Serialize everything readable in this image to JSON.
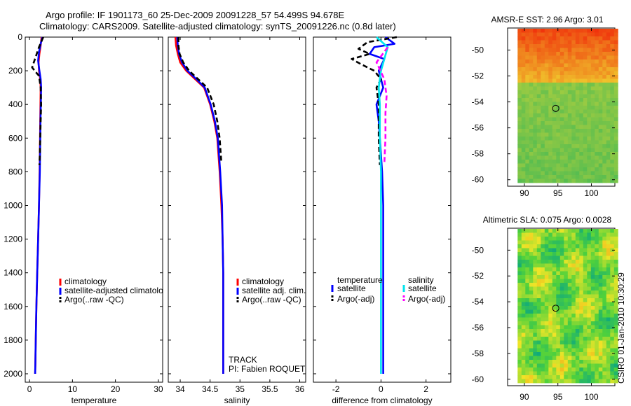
{
  "header": {
    "title_line1": "Argo profile: IF 1901173_60 25-Dec-2009 20091228_57 54.499S 94.678E",
    "title_line2": "Climatology: CARS2009. Satellite-adjusted climatology: synTS_20091226.nc (0.8d later)"
  },
  "footer": {
    "track_label": "TRACK",
    "pi_label": "PI: Fabien ROQUET",
    "credit": "CSIRO 01-Jan-2010 10:30:29"
  },
  "colors": {
    "climatology": "#ff0000",
    "satellite": "#0000ff",
    "argo": "#000000",
    "satellite_salinity": "#00e5ee",
    "argo_salinity": "#ff00ff"
  },
  "chart_data": [
    {
      "type": "line",
      "name": "temperature-profile",
      "xlabel": "temperature",
      "xlim": [
        -1,
        31
      ],
      "ylim": [
        0,
        2050
      ],
      "y_reversed": true,
      "x_ticks": [
        "0",
        "10",
        "20",
        "30"
      ],
      "y_ticks": [
        "0",
        "200",
        "400",
        "600",
        "800",
        "1000",
        "1200",
        "1400",
        "1600",
        "1800",
        "2000"
      ],
      "legend": [
        "climatology",
        "satellite-adjusted climatolo",
        "Argo(..raw -QC)"
      ],
      "series": [
        {
          "name": "climatology",
          "color": "#ff0000",
          "style": "solid",
          "x": [
            2.8,
            2.6,
            2.3,
            2.1,
            2.2,
            2.5,
            2.6,
            2.5,
            2.35,
            2.2,
            2.0,
            1.8,
            1.6,
            1.45,
            1.35,
            1.3
          ],
          "y": [
            0,
            50,
            100,
            150,
            200,
            250,
            300,
            500,
            800,
            1000,
            1200,
            1400,
            1600,
            1800,
            1950,
            2000
          ]
        },
        {
          "name": "satellite",
          "color": "#0000ff",
          "style": "solid",
          "x": [
            3.0,
            2.6,
            2.2,
            2.0,
            2.3,
            2.6,
            2.7,
            2.55,
            2.4,
            2.2,
            2.0,
            1.8,
            1.6,
            1.45,
            1.35,
            1.3
          ],
          "y": [
            0,
            40,
            90,
            140,
            200,
            250,
            300,
            500,
            800,
            1000,
            1200,
            1400,
            1600,
            1800,
            1950,
            2000
          ]
        },
        {
          "name": "argo",
          "color": "#000000",
          "style": "dashed",
          "x": [
            3.2,
            2.2,
            1.4,
            0.6,
            1.2,
            2.2,
            2.6,
            2.7,
            2.6,
            2.5,
            2.4,
            2.3
          ],
          "y": [
            0,
            60,
            120,
            180,
            200,
            230,
            300,
            400,
            500,
            600,
            700,
            760
          ]
        }
      ]
    },
    {
      "type": "line",
      "name": "salinity-profile",
      "xlabel": "salinity",
      "xlim": [
        33.8,
        36.1
      ],
      "ylim": [
        0,
        2050
      ],
      "y_reversed": true,
      "x_ticks": [
        "34",
        "34.5",
        "35",
        "35.5",
        "36"
      ],
      "legend": [
        "climatology",
        "satellite adj. clim.",
        "Argo(..raw -QC)"
      ],
      "series": [
        {
          "name": "climatology",
          "color": "#ff0000",
          "style": "solid",
          "x": [
            33.92,
            33.93,
            33.96,
            34.0,
            34.1,
            34.25,
            34.4,
            34.5,
            34.57,
            34.62,
            34.66,
            34.69,
            34.71,
            34.72,
            34.72,
            34.72,
            34.72
          ],
          "y": [
            0,
            50,
            100,
            150,
            200,
            250,
            300,
            400,
            500,
            600,
            800,
            1000,
            1200,
            1400,
            1600,
            1800,
            2000
          ]
        },
        {
          "name": "satellite",
          "color": "#0000ff",
          "style": "solid",
          "x": [
            33.95,
            33.96,
            33.98,
            34.03,
            34.12,
            34.27,
            34.41,
            34.51,
            34.58,
            34.63,
            34.67,
            34.7,
            34.71,
            34.72,
            34.72,
            34.72,
            34.72
          ],
          "y": [
            0,
            50,
            100,
            150,
            200,
            250,
            300,
            400,
            500,
            600,
            800,
            1000,
            1200,
            1400,
            1600,
            1800,
            2000
          ]
        },
        {
          "name": "argo",
          "color": "#000000",
          "style": "dashed",
          "x": [
            33.97,
            33.97,
            33.99,
            34.05,
            34.15,
            34.3,
            34.45,
            34.56,
            34.62,
            34.66,
            34.69
          ],
          "y": [
            0,
            50,
            100,
            150,
            200,
            250,
            300,
            400,
            500,
            600,
            750
          ]
        }
      ]
    },
    {
      "type": "line",
      "name": "difference-profile",
      "xlabel": "difference from climatology",
      "xlim": [
        -3,
        3.1
      ],
      "ylim": [
        0,
        2050
      ],
      "y_reversed": true,
      "x_ticks": [
        "-2",
        "0",
        "2"
      ],
      "legend": [
        "temperature",
        "satellite",
        "Argo(-adj)",
        "salinity",
        "satellite",
        "Argo(-adj)"
      ],
      "series": [
        {
          "name": "temperature satellite",
          "color": "#0000ff",
          "style": "solid",
          "x": [
            0.2,
            0.6,
            -0.3,
            -0.5,
            0.15,
            -0.1,
            0.1,
            -0.2,
            -0.1,
            0.05,
            0.1,
            0.1,
            0.1,
            0.1,
            0.1,
            0.1
          ],
          "y": [
            0,
            40,
            60,
            100,
            130,
            200,
            300,
            400,
            500,
            800,
            1000,
            1200,
            1400,
            1600,
            1800,
            2000
          ]
        },
        {
          "name": "temperature argo",
          "color": "#000000",
          "style": "dashed",
          "x": [
            0.7,
            -0.6,
            -1.0,
            -0.5,
            -1.3,
            -0.9,
            -0.3,
            0.0,
            -0.2,
            -0.1,
            -0.1,
            -0.05
          ],
          "y": [
            0,
            30,
            70,
            100,
            130,
            160,
            200,
            250,
            300,
            400,
            600,
            760
          ]
        },
        {
          "name": "salinity satellite",
          "color": "#00e5ee",
          "style": "solid",
          "x": [
            -0.2,
            0.3,
            0.0,
            -0.1,
            -0.05,
            -0.05,
            0.0,
            0.0,
            0.0,
            0.0,
            0.0
          ],
          "y": [
            0,
            60,
            200,
            300,
            400,
            600,
            800,
            1200,
            1600,
            1800,
            2000
          ]
        },
        {
          "name": "salinity argo",
          "color": "#ff00ff",
          "style": "dashed",
          "x": [
            0.3,
            -0.2,
            0.15,
            0.25,
            0.2,
            0.2,
            0.15
          ],
          "y": [
            60,
            150,
            250,
            350,
            450,
            600,
            750
          ]
        }
      ]
    },
    {
      "type": "heatmap",
      "name": "sst-map",
      "title": "AMSR-E SST: 2.96 Argo: 3.01",
      "xlim": [
        87.5,
        103.5
      ],
      "ylim": [
        -60.5,
        -48.3
      ],
      "x_ticks": [
        "90",
        "95",
        "100"
      ],
      "y_ticks": [
        "-50",
        "-52",
        "-54",
        "-56",
        "-58",
        "-60"
      ],
      "marker": {
        "lon": 94.678,
        "lat": -54.499
      }
    },
    {
      "type": "heatmap",
      "name": "sla-map",
      "title": "Altimetric SLA: 0.075 Argo: 0.0028",
      "xlim": [
        87.5,
        103.5
      ],
      "ylim": [
        -60.5,
        -48.3
      ],
      "x_ticks": [
        "90",
        "95",
        "100"
      ],
      "y_ticks": [
        "-50",
        "-52",
        "-54",
        "-56",
        "-58",
        "-60"
      ],
      "marker": {
        "lon": 94.678,
        "lat": -54.499
      }
    }
  ]
}
